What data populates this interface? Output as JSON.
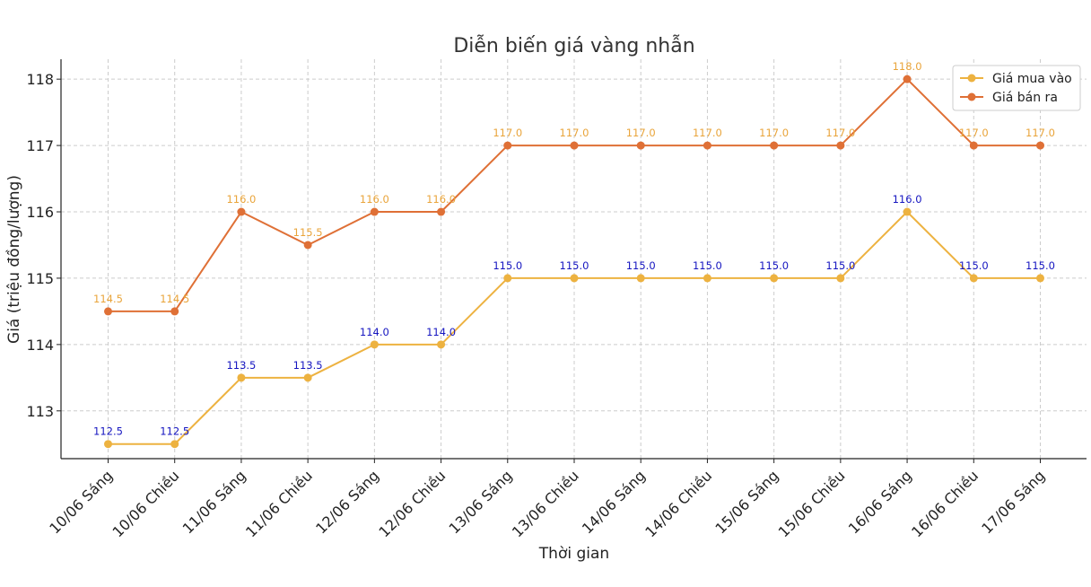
{
  "chart_data": {
    "type": "line",
    "title": "Diễn biến giá vàng nhẫn",
    "xlabel": "Thời gian",
    "ylabel": "Giá (triệu đồng/lượng)",
    "categories": [
      "10/06 Sáng",
      "10/06 Chiều",
      "11/06 Sáng",
      "11/06 Chiều",
      "12/06 Sáng",
      "12/06 Chiều",
      "13/06 Sáng",
      "13/06 Chiều",
      "14/06 Sáng",
      "14/06 Chiều",
      "15/06 Sáng",
      "15/06 Chiều",
      "16/06 Sáng",
      "16/06 Chiều",
      "17/06 Sáng"
    ],
    "ylim": [
      112.28,
      118.3
    ],
    "yticks": [
      113,
      114,
      115,
      116,
      117,
      118
    ],
    "grid": true,
    "legend_position": "top-right",
    "series": [
      {
        "name": "Giá mua vào",
        "color": "#EDB240",
        "label_color": "#1515C0",
        "values": [
          112.5,
          112.5,
          113.5,
          113.5,
          114.0,
          114.0,
          115.0,
          115.0,
          115.0,
          115.0,
          115.0,
          115.0,
          116.0,
          115.0,
          115.0
        ],
        "labels": [
          "112.5",
          "112.5",
          "113.5",
          "113.5",
          "114.0",
          "114.0",
          "115.0",
          "115.0",
          "115.0",
          "115.0",
          "115.0",
          "115.0",
          "116.0",
          "115.0",
          "115.0"
        ]
      },
      {
        "name": "Giá bán ra",
        "color": "#DF7036",
        "label_color": "#E9A43A",
        "values": [
          114.5,
          114.5,
          116.0,
          115.5,
          116.0,
          116.0,
          117.0,
          117.0,
          117.0,
          117.0,
          117.0,
          117.0,
          118.0,
          117.0,
          117.0
        ],
        "labels": [
          "114.5",
          "114.5",
          "116.0",
          "115.5",
          "116.0",
          "116.0",
          "117.0",
          "117.0",
          "117.0",
          "117.0",
          "117.0",
          "117.0",
          "118.0",
          "117.0",
          "117.0"
        ]
      }
    ]
  }
}
